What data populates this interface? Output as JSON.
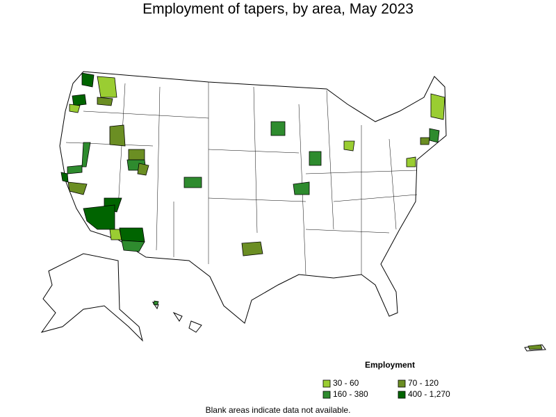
{
  "title": "Employment of tapers, by area, May 2023",
  "legend": {
    "title": "Employment",
    "items": [
      {
        "label": "30 - 60",
        "color": "#9acd32"
      },
      {
        "label": "70 - 120",
        "color": "#6b8e23"
      },
      {
        "label": "160 - 380",
        "color": "#2e8b2e"
      },
      {
        "label": "400 - 1,270",
        "color": "#006400"
      }
    ]
  },
  "note": "Blank areas indicate data not available."
}
